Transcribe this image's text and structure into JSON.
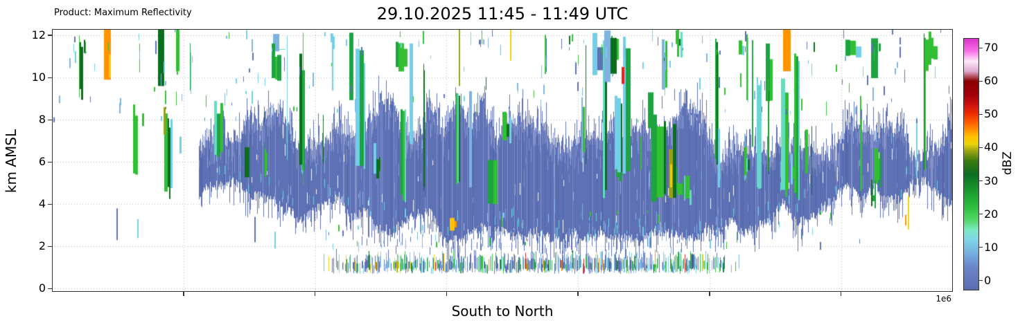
{
  "header": {
    "product_label": "Product: Maximum Reflectivity",
    "title": "29.10.2025 11:45 - 11:49 UTC"
  },
  "chart_data": {
    "type": "heatmap",
    "title": "29.10.2025 11:45 - 11:49 UTC",
    "product": "Maximum Reflectivity",
    "xlabel": "South to North",
    "ylabel": "km AMSL",
    "x_offset_label": "1e6",
    "units": "dBZ",
    "xlim": [
      0,
      1370000
    ],
    "ylim": [
      -0.15,
      12.3
    ],
    "yticks": [
      0,
      2,
      4,
      6,
      8,
      10,
      12
    ],
    "x_gridlines": [
      200000,
      400000,
      600000,
      800000,
      1000000,
      1200000
    ],
    "grid": true,
    "colorbar": {
      "label": "dBZ",
      "ticks": [
        0,
        10,
        20,
        30,
        40,
        50,
        60,
        70
      ],
      "range": [
        -3,
        73
      ],
      "stops": [
        [
          -3,
          "#5a6cb0"
        ],
        [
          4,
          "#6a84c8"
        ],
        [
          8,
          "#74aede"
        ],
        [
          12,
          "#7fd2e8"
        ],
        [
          15,
          "#7de8c8"
        ],
        [
          18,
          "#55d96a"
        ],
        [
          22,
          "#2fbf3f"
        ],
        [
          27,
          "#1a9a2e"
        ],
        [
          32,
          "#0c6e22"
        ],
        [
          36,
          "#3d7a10"
        ],
        [
          39,
          "#9aa414"
        ],
        [
          41,
          "#e8d40a"
        ],
        [
          43,
          "#ffc400"
        ],
        [
          45,
          "#ff9800"
        ],
        [
          47,
          "#ff6a00"
        ],
        [
          50,
          "#f03000"
        ],
        [
          53,
          "#cc1010"
        ],
        [
          56,
          "#a00008"
        ],
        [
          60,
          "#8b0000"
        ],
        [
          63,
          "#e0a8d0"
        ],
        [
          66,
          "#fbe8f8"
        ],
        [
          69,
          "#f970e8"
        ],
        [
          73,
          "#d830c8"
        ]
      ]
    },
    "summary": "Vertical cross-section (height vs. south-to-north distance) of maximum radar reflectivity: widespread stratiform layer of 0-10 dBZ (slate blue) between roughly 2 and 8 km AMSL, embedded convective columns of 15-35 dBZ (greens) reaching 12 km, scattered 40-50 dBZ cores (yellow/orange/red), and a shallow mixed-intensity precipitation layer near 1 km in the central sector.",
    "render": {
      "seed": 1337,
      "colors": {
        "blue": "#5e71b5",
        "blue2": "#5065ab",
        "blue3": "#8492c9",
        "lightblue": "#7fb2e0",
        "cyan": "#72cfe8",
        "teal": "#63dcc0",
        "green": "#33bf33",
        "midgreen": "#1da340",
        "darkgreen": "#0b6e1e",
        "olive": "#97a018",
        "yellow": "#f2d200",
        "gold": "#ffc400",
        "orange": "#ff9400",
        "red": "#e32222",
        "darkred": "#990000"
      },
      "band": {
        "start": 0.163
      },
      "low": {
        "x0": 0.295,
        "x1": 0.765,
        "palette": [
          [
            "blue",
            40
          ],
          [
            "lightblue",
            14
          ],
          [
            "cyan",
            16
          ],
          [
            "green",
            12
          ],
          [
            "midgreen",
            6
          ],
          [
            "darkgreen",
            4
          ],
          [
            "yellow",
            3
          ],
          [
            "orange",
            3
          ],
          [
            "red",
            2
          ]
        ]
      },
      "cells": {
        "count": 75,
        "palette": [
          [
            "green",
            34
          ],
          [
            "midgreen",
            20
          ],
          [
            "darkgreen",
            16
          ],
          [
            "cyan",
            12
          ],
          [
            "lightblue",
            8
          ],
          [
            "teal",
            6
          ],
          [
            "blue",
            4
          ]
        ],
        "highlights": [
          {
            "xf": 0.058,
            "b": 9.9,
            "t": 12.3,
            "w": 10,
            "c": "orange"
          },
          {
            "xf": 0.0635,
            "b": 10.0,
            "t": 11.1,
            "w": 3,
            "c": "gold"
          },
          {
            "xf": 0.118,
            "b": 9.6,
            "t": 12.3,
            "w": 9,
            "c": "darkgreen"
          },
          {
            "xf": 0.125,
            "b": 4.6,
            "t": 8.3,
            "w": 5,
            "c": "green"
          },
          {
            "xf": 0.1245,
            "b": 7.3,
            "t": 8.6,
            "w": 3,
            "c": "olive"
          },
          {
            "xf": 0.138,
            "b": 10.3,
            "t": 12.3,
            "w": 5,
            "c": "green"
          },
          {
            "xf": 0.142,
            "b": 6.4,
            "t": 7.2,
            "w": 3,
            "c": "cyan"
          },
          {
            "xf": 0.442,
            "b": 2.75,
            "t": 3.35,
            "w": 7,
            "c": "gold"
          },
          {
            "xf": 0.447,
            "b": 2.9,
            "t": 3.2,
            "w": 3,
            "c": "orange"
          },
          {
            "xf": 0.452,
            "b": 9.6,
            "t": 12.3,
            "w": 2,
            "c": "olive"
          },
          {
            "xf": 0.509,
            "b": 10.8,
            "t": 12.3,
            "w": 2,
            "c": "yellow"
          },
          {
            "xf": 0.633,
            "b": 9.7,
            "t": 10.5,
            "w": 4,
            "c": "red"
          },
          {
            "xf": 0.662,
            "b": 7.6,
            "t": 9.3,
            "w": 8,
            "c": "midgreen"
          },
          {
            "xf": 0.685,
            "b": 4.3,
            "t": 6.6,
            "w": 6,
            "c": "olive"
          },
          {
            "xf": 0.6865,
            "b": 4.8,
            "t": 5.9,
            "w": 3,
            "c": "gold"
          },
          {
            "xf": 0.69,
            "b": 4.3,
            "t": 7.8,
            "w": 5,
            "c": "darkgreen"
          },
          {
            "xf": 0.812,
            "b": 10.3,
            "t": 12.3,
            "w": 11,
            "c": "orange"
          },
          {
            "xf": 0.947,
            "b": 3.0,
            "t": 3.5,
            "w": 2,
            "c": "orange"
          },
          {
            "xf": 0.95,
            "b": 2.8,
            "t": 4.4,
            "w": 2,
            "c": "yellow"
          }
        ]
      },
      "dashes": {
        "count": 170,
        "palette": [
          [
            "blue",
            30
          ],
          [
            "lightblue",
            22
          ],
          [
            "cyan",
            22
          ],
          [
            "green",
            18
          ],
          [
            "darkgreen",
            8
          ]
        ]
      },
      "low_dashes": {
        "count": 60
      },
      "left_lines": [
        {
          "xf": 0.072,
          "b": 2.3,
          "t": 3.8,
          "w": 2,
          "c": "blue"
        },
        {
          "xf": 0.095,
          "b": 2.4,
          "t": 3.3,
          "w": 2,
          "c": "cyan"
        },
        {
          "xf": 0.075,
          "b": 8.3,
          "t": 8.8,
          "w": 2,
          "c": "lightblue"
        },
        {
          "xf": 0.1,
          "b": 7.7,
          "t": 8.3,
          "w": 3,
          "c": "green"
        },
        {
          "xf": 0.225,
          "b": 2.2,
          "t": 3.4,
          "w": 2,
          "c": "blue"
        },
        {
          "xf": 0.247,
          "b": 1.9,
          "t": 2.7,
          "w": 2,
          "c": "cyan"
        }
      ]
    }
  }
}
